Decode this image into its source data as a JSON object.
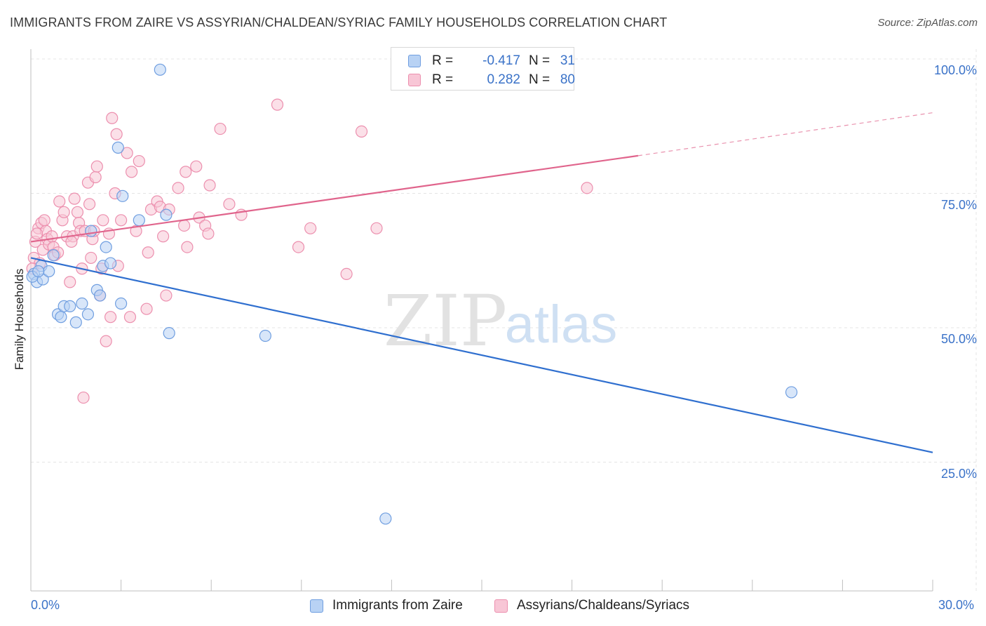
{
  "header": {
    "title": "IMMIGRANTS FROM ZAIRE VS ASSYRIAN/CHALDEAN/SYRIAC FAMILY HOUSEHOLDS CORRELATION CHART",
    "source": "Source: ZipAtlas.com"
  },
  "watermark": {
    "zip": "ZIP",
    "atlas": "atlas"
  },
  "legend": {
    "rows": [
      {
        "r_label": "R =",
        "r_value": "-0.417",
        "n_label": "N =",
        "n_value": "31"
      },
      {
        "r_label": "R =",
        "r_value": "0.282",
        "n_label": "N =",
        "n_value": "80"
      }
    ]
  },
  "colors": {
    "blue_fill": "#b8d2f4",
    "blue_stroke": "#6f9ee0",
    "blue_line": "#2f6fcf",
    "pink_fill": "#f8c6d6",
    "pink_stroke": "#ec8fae",
    "pink_line": "#e0648c",
    "grid": "#e4e4e4",
    "axis_text": "#3a72c8"
  },
  "chart_data": {
    "type": "scatter",
    "title": "IMMIGRANTS FROM ZAIRE VS ASSYRIAN/CHALDEAN/SYRIAC FAMILY HOUSEHOLDS CORRELATION CHART",
    "xlabel": "",
    "ylabel": "Family Households",
    "xlim": [
      0,
      30
    ],
    "ylim": [
      0,
      105
    ],
    "x_tick_labels": [
      "0.0%",
      "30.0%"
    ],
    "y_tick_labels": [
      "100.0%",
      "75.0%",
      "50.0%",
      "25.0%"
    ],
    "y_ticks": [
      100,
      75,
      50,
      25
    ],
    "grid": true,
    "legend_position": "top-center",
    "series": [
      {
        "name": "Immigrants from Zaire",
        "color": "blue",
        "r": -0.417,
        "n": 31,
        "trend": {
          "x": [
            0,
            30
          ],
          "y": [
            63.0,
            26.8
          ]
        },
        "points": [
          [
            0.1,
            60.0
          ],
          [
            0.2,
            58.5
          ],
          [
            0.35,
            61.5
          ],
          [
            0.4,
            59.0
          ],
          [
            0.6,
            60.5
          ],
          [
            0.75,
            63.5
          ],
          [
            0.9,
            52.5
          ],
          [
            1.0,
            52.0
          ],
          [
            1.1,
            54.0
          ],
          [
            1.3,
            54.0
          ],
          [
            1.5,
            51.0
          ],
          [
            1.7,
            54.5
          ],
          [
            1.9,
            52.5
          ],
          [
            2.0,
            68.0
          ],
          [
            2.2,
            57.0
          ],
          [
            2.3,
            56.0
          ],
          [
            2.4,
            61.5
          ],
          [
            2.5,
            65.0
          ],
          [
            2.65,
            62.0
          ],
          [
            2.9,
            83.5
          ],
          [
            3.0,
            54.5
          ],
          [
            3.05,
            74.5
          ],
          [
            3.6,
            70.0
          ],
          [
            4.3,
            98.0
          ],
          [
            4.5,
            71.0
          ],
          [
            4.6,
            49.0
          ],
          [
            7.8,
            48.5
          ],
          [
            11.8,
            14.5
          ],
          [
            25.3,
            38.0
          ],
          [
            0.05,
            59.5
          ],
          [
            0.25,
            60.5
          ]
        ]
      },
      {
        "name": "Assyrians/Chaldeans/Syriacs",
        "color": "pink",
        "r": 0.282,
        "n": 80,
        "trend": {
          "x": [
            0,
            20.2
          ],
          "y": [
            66.0,
            82.0
          ]
        },
        "trend_dashed": {
          "x": [
            20.2,
            30
          ],
          "y": [
            82.0,
            90.0
          ]
        },
        "points": [
          [
            0.1,
            63.0
          ],
          [
            0.15,
            66.0
          ],
          [
            0.25,
            68.5
          ],
          [
            0.3,
            62.0
          ],
          [
            0.35,
            69.5
          ],
          [
            0.4,
            64.5
          ],
          [
            0.5,
            68.0
          ],
          [
            0.55,
            66.5
          ],
          [
            0.6,
            65.5
          ],
          [
            0.7,
            67.0
          ],
          [
            0.75,
            65.0
          ],
          [
            0.8,
            63.5
          ],
          [
            0.9,
            64.0
          ],
          [
            0.95,
            73.5
          ],
          [
            1.05,
            70.0
          ],
          [
            1.1,
            71.5
          ],
          [
            1.2,
            67.0
          ],
          [
            1.3,
            58.5
          ],
          [
            1.4,
            67.0
          ],
          [
            1.45,
            74.0
          ],
          [
            1.55,
            71.5
          ],
          [
            1.6,
            69.5
          ],
          [
            1.65,
            68.0
          ],
          [
            1.7,
            61.0
          ],
          [
            1.75,
            37.0
          ],
          [
            1.8,
            68.0
          ],
          [
            1.9,
            77.0
          ],
          [
            1.95,
            73.0
          ],
          [
            2.0,
            63.0
          ],
          [
            2.05,
            66.5
          ],
          [
            2.1,
            68.0
          ],
          [
            2.15,
            78.0
          ],
          [
            2.2,
            80.0
          ],
          [
            2.3,
            56.0
          ],
          [
            2.35,
            61.0
          ],
          [
            2.4,
            70.0
          ],
          [
            2.5,
            47.5
          ],
          [
            2.6,
            67.5
          ],
          [
            2.65,
            52.0
          ],
          [
            2.7,
            89.0
          ],
          [
            2.8,
            75.0
          ],
          [
            2.85,
            86.0
          ],
          [
            2.9,
            61.5
          ],
          [
            3.0,
            70.0
          ],
          [
            3.2,
            82.5
          ],
          [
            3.3,
            52.0
          ],
          [
            3.35,
            79.0
          ],
          [
            3.5,
            68.0
          ],
          [
            3.6,
            81.0
          ],
          [
            3.85,
            53.5
          ],
          [
            3.9,
            64.0
          ],
          [
            4.0,
            72.0
          ],
          [
            4.2,
            73.5
          ],
          [
            4.3,
            72.5
          ],
          [
            4.4,
            67.0
          ],
          [
            4.5,
            56.0
          ],
          [
            4.6,
            72.0
          ],
          [
            4.9,
            76.0
          ],
          [
            5.1,
            69.0
          ],
          [
            5.15,
            79.0
          ],
          [
            5.2,
            65.0
          ],
          [
            5.5,
            80.0
          ],
          [
            5.6,
            70.5
          ],
          [
            5.8,
            69.0
          ],
          [
            5.9,
            67.5
          ],
          [
            5.95,
            76.5
          ],
          [
            6.3,
            87.0
          ],
          [
            6.6,
            73.0
          ],
          [
            7.0,
            71.0
          ],
          [
            8.2,
            91.5
          ],
          [
            8.9,
            65.0
          ],
          [
            9.3,
            68.5
          ],
          [
            10.5,
            60.0
          ],
          [
            11.0,
            86.5
          ],
          [
            11.5,
            68.5
          ],
          [
            18.5,
            76.0
          ],
          [
            0.05,
            61.0
          ],
          [
            0.2,
            67.5
          ],
          [
            0.45,
            70.0
          ],
          [
            1.35,
            66.0
          ]
        ]
      }
    ]
  },
  "bottom_legend": {
    "items": [
      {
        "label": "Immigrants from Zaire",
        "color": "blue"
      },
      {
        "label": "Assyrians/Chaldeans/Syriacs",
        "color": "pink"
      }
    ]
  }
}
